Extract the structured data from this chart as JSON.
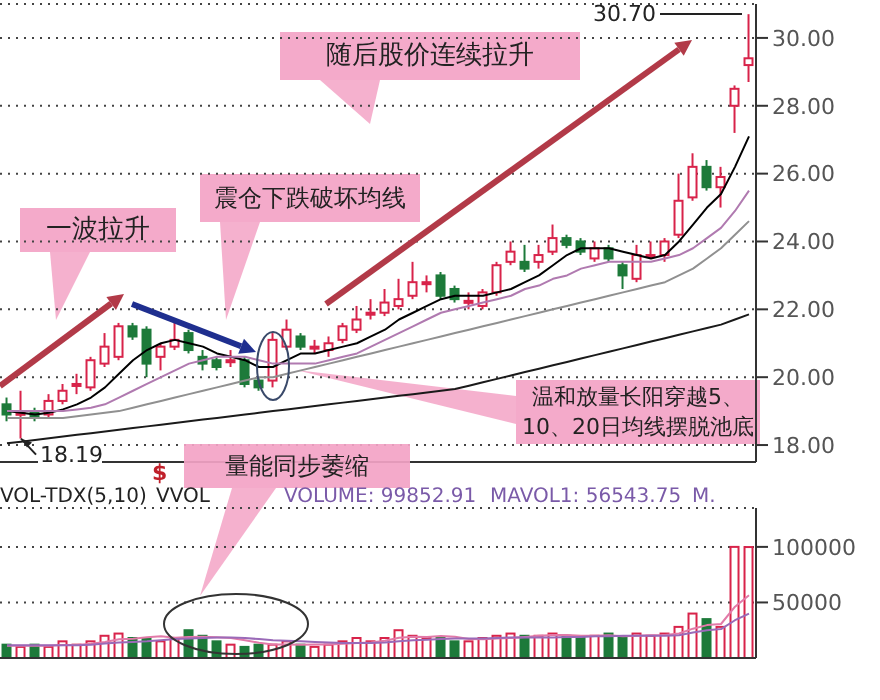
{
  "chart_data": [
    {
      "type": "candlestick",
      "categories": [
        null,
        null,
        null,
        null,
        null,
        null,
        null,
        null,
        null,
        null,
        null,
        null,
        null,
        null,
        null,
        null,
        null,
        null,
        null,
        null,
        null,
        null,
        null,
        null,
        null,
        null,
        null,
        null,
        null,
        null,
        null,
        null,
        null,
        null,
        null,
        null,
        null,
        null,
        null,
        null,
        null,
        null,
        null,
        null,
        null,
        null,
        null,
        null,
        null,
        null,
        null,
        null,
        null,
        null
      ],
      "ohlc": [
        [
          19.2,
          19.4,
          18.7,
          18.9
        ],
        [
          18.9,
          19.6,
          18.19,
          18.95
        ],
        [
          19.0,
          19.1,
          18.7,
          18.85
        ],
        [
          18.9,
          19.5,
          18.8,
          19.3
        ],
        [
          19.3,
          19.8,
          19.2,
          19.6
        ],
        [
          19.75,
          20.1,
          19.5,
          19.8
        ],
        [
          19.7,
          20.6,
          19.6,
          20.5
        ],
        [
          20.4,
          21.3,
          20.3,
          20.9
        ],
        [
          20.6,
          21.6,
          20.5,
          21.5
        ],
        [
          21.5,
          21.6,
          21.1,
          21.2
        ],
        [
          21.4,
          21.5,
          20.0,
          20.4
        ],
        [
          20.6,
          21.0,
          20.2,
          20.9
        ],
        [
          20.9,
          21.6,
          20.8,
          21.1
        ],
        [
          21.3,
          21.4,
          20.7,
          20.8
        ],
        [
          20.6,
          20.8,
          20.2,
          20.4
        ],
        [
          20.5,
          20.6,
          20.2,
          20.3
        ],
        [
          20.45,
          20.8,
          20.3,
          20.5
        ],
        [
          20.5,
          20.6,
          19.7,
          19.8
        ],
        [
          19.9,
          20.0,
          19.6,
          19.7
        ],
        [
          19.9,
          21.3,
          19.7,
          21.1
        ],
        [
          20.9,
          21.7,
          20.8,
          21.4
        ],
        [
          21.2,
          21.3,
          20.8,
          20.9
        ],
        [
          20.85,
          21.1,
          20.7,
          20.9
        ],
        [
          20.8,
          21.2,
          20.6,
          21.0
        ],
        [
          21.1,
          21.6,
          21.0,
          21.5
        ],
        [
          21.4,
          22.1,
          21.3,
          21.7
        ],
        [
          21.85,
          22.3,
          21.7,
          21.9
        ],
        [
          21.9,
          22.6,
          21.8,
          22.2
        ],
        [
          22.1,
          22.9,
          22.0,
          22.3
        ],
        [
          22.4,
          23.4,
          22.3,
          22.8
        ],
        [
          22.75,
          23.0,
          22.5,
          22.8
        ],
        [
          23.0,
          23.1,
          22.3,
          22.4
        ],
        [
          22.6,
          22.7,
          22.2,
          22.3
        ],
        [
          22.2,
          22.5,
          22.0,
          22.25
        ],
        [
          22.1,
          22.6,
          22.0,
          22.5
        ],
        [
          22.5,
          23.4,
          22.4,
          23.3
        ],
        [
          23.4,
          24.0,
          23.3,
          23.7
        ],
        [
          23.4,
          23.9,
          23.1,
          23.2
        ],
        [
          23.4,
          23.9,
          23.2,
          23.6
        ],
        [
          23.7,
          24.5,
          23.6,
          24.1
        ],
        [
          24.1,
          24.2,
          23.8,
          23.9
        ],
        [
          24.0,
          24.1,
          23.6,
          23.7
        ],
        [
          23.5,
          24.0,
          23.4,
          23.8
        ],
        [
          23.8,
          23.9,
          23.4,
          23.5
        ],
        [
          23.3,
          23.4,
          22.6,
          23.0
        ],
        [
          22.9,
          23.9,
          22.8,
          23.6
        ],
        [
          23.55,
          24.0,
          23.5,
          23.6
        ],
        [
          23.6,
          24.1,
          23.4,
          24.0
        ],
        [
          24.2,
          26.0,
          24.1,
          25.2
        ],
        [
          25.3,
          26.6,
          25.2,
          26.2
        ],
        [
          26.2,
          26.4,
          25.5,
          25.6
        ],
        [
          25.6,
          26.2,
          25.0,
          25.9
        ],
        [
          28.0,
          28.6,
          27.2,
          28.5
        ],
        [
          29.2,
          30.7,
          28.7,
          29.4
        ]
      ],
      "colors": [
        "#1d7a3a",
        "#d8234a",
        "#1d7a3a",
        "#d8234a",
        "#d8234a",
        "#d8234a",
        "#d8234a",
        "#d8234a",
        "#d8234a",
        "#1d7a3a",
        "#1d7a3a",
        "#d8234a",
        "#d8234a",
        "#1d7a3a",
        "#1d7a3a",
        "#1d7a3a",
        "#d8234a",
        "#1d7a3a",
        "#1d7a3a",
        "#d8234a",
        "#d8234a",
        "#1d7a3a",
        "#d8234a",
        "#d8234a",
        "#d8234a",
        "#d8234a",
        "#d8234a",
        "#d8234a",
        "#d8234a",
        "#d8234a",
        "#d8234a",
        "#1d7a3a",
        "#1d7a3a",
        "#d8234a",
        "#d8234a",
        "#d8234a",
        "#d8234a",
        "#1d7a3a",
        "#d8234a",
        "#d8234a",
        "#1d7a3a",
        "#1d7a3a",
        "#d8234a",
        "#1d7a3a",
        "#1d7a3a",
        "#d8234a",
        "#d8234a",
        "#d8234a",
        "#d8234a",
        "#d8234a",
        "#1d7a3a",
        "#d8234a",
        "#d8234a",
        "#d8234a"
      ],
      "series": [
        {
          "type": "line",
          "color": "#000000",
          "values": [
            19.0,
            18.95,
            18.9,
            18.95,
            19.05,
            19.2,
            19.4,
            19.7,
            20.1,
            20.5,
            20.8,
            21.0,
            21.1,
            21.0,
            20.9,
            20.7,
            20.6,
            20.5,
            20.3,
            20.3,
            20.5,
            20.7,
            20.7,
            20.8,
            20.9,
            21.0,
            21.2,
            21.4,
            21.7,
            21.9,
            22.1,
            22.3,
            22.4,
            22.4,
            22.4,
            22.5,
            22.6,
            22.8,
            23.0,
            23.3,
            23.6,
            23.8,
            23.8,
            23.8,
            23.7,
            23.6,
            23.5,
            23.6,
            24.0,
            24.5,
            25.0,
            25.4,
            26.2,
            27.1
          ]
        },
        {
          "type": "line",
          "color": "#b07ab0",
          "values": [
            19.0,
            19.0,
            19.0,
            19.0,
            19.0,
            19.05,
            19.1,
            19.2,
            19.4,
            19.6,
            19.8,
            20.0,
            20.2,
            20.4,
            20.5,
            20.6,
            20.6,
            20.6,
            20.5,
            20.4,
            20.4,
            20.4,
            20.4,
            20.5,
            20.6,
            20.7,
            20.9,
            21.1,
            21.3,
            21.5,
            21.7,
            21.9,
            22.0,
            22.1,
            22.2,
            22.3,
            22.4,
            22.6,
            22.7,
            22.9,
            23.0,
            23.2,
            23.3,
            23.4,
            23.4,
            23.4,
            23.4,
            23.5,
            23.6,
            23.8,
            24.1,
            24.4,
            24.9,
            25.5
          ]
        },
        {
          "type": "line",
          "color": "#909090",
          "values": [
            18.8,
            18.8,
            18.8,
            18.8,
            18.8,
            18.85,
            18.9,
            18.95,
            19.0,
            19.1,
            19.2,
            19.3,
            19.4,
            19.5,
            19.6,
            19.7,
            19.8,
            19.9,
            20.0,
            20.0,
            20.1,
            20.2,
            20.3,
            20.4,
            20.5,
            20.6,
            20.7,
            20.8,
            20.9,
            21.0,
            21.1,
            21.2,
            21.3,
            21.4,
            21.5,
            21.6,
            21.7,
            21.8,
            21.9,
            22.0,
            22.1,
            22.2,
            22.3,
            22.4,
            22.5,
            22.6,
            22.7,
            22.8,
            23.0,
            23.2,
            23.5,
            23.8,
            24.2,
            24.6
          ]
        },
        {
          "type": "line",
          "color": "#1a1a1a",
          "values": [
            18.05,
            18.1,
            18.15,
            18.2,
            18.25,
            18.3,
            18.35,
            18.4,
            18.45,
            18.5,
            18.55,
            18.6,
            18.65,
            18.7,
            18.75,
            18.8,
            18.85,
            18.9,
            18.95,
            19.0,
            19.05,
            19.1,
            19.15,
            19.2,
            19.25,
            19.3,
            19.35,
            19.4,
            19.45,
            19.5,
            19.55,
            19.6,
            19.65,
            19.75,
            19.85,
            19.95,
            20.05,
            20.15,
            20.25,
            20.35,
            20.45,
            20.55,
            20.65,
            20.75,
            20.85,
            20.95,
            21.05,
            21.15,
            21.25,
            21.35,
            21.45,
            21.55,
            21.7,
            21.85
          ]
        }
      ],
      "ylim": [
        17.5,
        31
      ],
      "yticks": [
        {
          "value": 18,
          "label": "18.00"
        },
        {
          "value": 20,
          "label": "20.00"
        },
        {
          "value": 22,
          "label": "22.00"
        },
        {
          "value": 24,
          "label": "24.00"
        },
        {
          "value": 26,
          "label": "26.00"
        },
        {
          "value": 28,
          "label": "28.00"
        },
        {
          "value": 30,
          "label": "30.00"
        }
      ],
      "grid": "y",
      "tick_labels": "y",
      "annotations": [
        "一波拉升",
        "震仓下跌破坏均线",
        "随后股价连续拉升",
        "温和放量长阳穿越5、10、20日均线摆脱池底",
        "30.70",
        {
          "text": "18.19",
          "y": 18.19
        },
        "$"
      ]
    },
    {
      "type": "bar",
      "categories": [
        null,
        null,
        null,
        null,
        null,
        null,
        null,
        null,
        null,
        null,
        null,
        null,
        null,
        null,
        null,
        null,
        null,
        null,
        null,
        null,
        null,
        null,
        null,
        null,
        null,
        null,
        null,
        null,
        null,
        null,
        null,
        null,
        null,
        null,
        null,
        null,
        null,
        null,
        null,
        null,
        null,
        null,
        null,
        null,
        null,
        null,
        null,
        null,
        null,
        null,
        null,
        null,
        null,
        null
      ],
      "series": [
        {
          "type": "bar",
          "values": [
            12000,
            10000,
            12000,
            10000,
            15000,
            12000,
            15000,
            20000,
            22000,
            18000,
            18000,
            15000,
            18000,
            25000,
            20000,
            15000,
            12000,
            10000,
            12000,
            12000,
            15000,
            12000,
            10000,
            12000,
            15000,
            18000,
            15000,
            18000,
            25000,
            20000,
            18000,
            18000,
            15000,
            15000,
            18000,
            20000,
            22000,
            20000,
            20000,
            22000,
            20000,
            18000,
            20000,
            22000,
            18000,
            22000,
            20000,
            22000,
            28000,
            40000,
            35000,
            28000,
            100000,
            99852.91
          ],
          "colors": [
            "#1d7a3a",
            "#d8234a",
            "#1d7a3a",
            "#d8234a",
            "#d8234a",
            "#d8234a",
            "#d8234a",
            "#d8234a",
            "#d8234a",
            "#1d7a3a",
            "#1d7a3a",
            "#d8234a",
            "#d8234a",
            "#1d7a3a",
            "#1d7a3a",
            "#1d7a3a",
            "#d8234a",
            "#1d7a3a",
            "#1d7a3a",
            "#d8234a",
            "#d8234a",
            "#1d7a3a",
            "#d8234a",
            "#d8234a",
            "#d8234a",
            "#d8234a",
            "#d8234a",
            "#d8234a",
            "#d8234a",
            "#d8234a",
            "#d8234a",
            "#1d7a3a",
            "#1d7a3a",
            "#d8234a",
            "#d8234a",
            "#d8234a",
            "#d8234a",
            "#1d7a3a",
            "#d8234a",
            "#d8234a",
            "#1d7a3a",
            "#1d7a3a",
            "#d8234a",
            "#1d7a3a",
            "#1d7a3a",
            "#d8234a",
            "#d8234a",
            "#d8234a",
            "#d8234a",
            "#d8234a",
            "#1d7a3a",
            "#d8234a",
            "#d8234a",
            "#d8234a"
          ]
        },
        {
          "type": "line",
          "color": "#e27aa8",
          "values": [
            11000,
            11000,
            11000,
            11000,
            11800,
            11800,
            12800,
            14400,
            16800,
            17400,
            18600,
            19600,
            18200,
            18800,
            19200,
            18600,
            18000,
            16000,
            13800,
            12200,
            12200,
            12000,
            12200,
            12200,
            12800,
            13400,
            14000,
            15600,
            18200,
            19200,
            18800,
            19800,
            19200,
            17200,
            16800,
            17600,
            18000,
            19000,
            20000,
            20800,
            20800,
            20000,
            20000,
            20400,
            19600,
            20000,
            20400,
            20800,
            22000,
            26400,
            29600,
            30600,
            46200,
            56543.75
          ]
        },
        {
          "type": "line",
          "color": "#9a6ab8",
          "values": [
            11500,
            11500,
            11500,
            11500,
            11500,
            11500,
            12000,
            13000,
            14000,
            14500,
            15000,
            16000,
            17000,
            17500,
            18000,
            18500,
            18500,
            18000,
            17000,
            16000,
            15500,
            15000,
            14500,
            14000,
            13500,
            13500,
            13500,
            14000,
            15000,
            16000,
            16500,
            17000,
            17500,
            17500,
            17500,
            18000,
            18500,
            18500,
            18500,
            18500,
            19000,
            19000,
            19500,
            19500,
            20000,
            20000,
            20000,
            20000,
            20500,
            23000,
            25000,
            26000,
            34000,
            40000
          ]
        }
      ],
      "ylim": [
        0,
        135000
      ],
      "yticks": [
        50000,
        100000
      ],
      "grid": "y",
      "tick_labels": "y",
      "annotations": [
        "量能同步萎缩",
        "VOL-TDX(5,10)",
        "VVOL",
        "VOLUME: 99852.91",
        "MAVOL1: 56543.75",
        "M."
      ]
    }
  ]
}
